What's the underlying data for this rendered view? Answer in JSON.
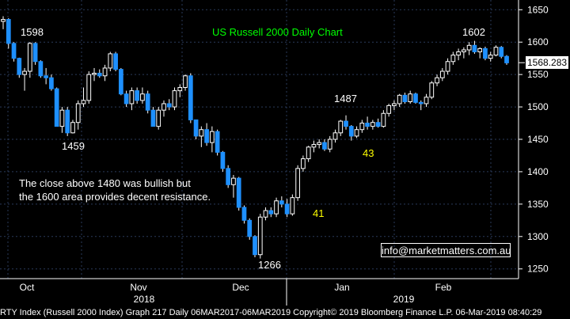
{
  "chart_data": {
    "type": "candlestick",
    "title": "US Russell 2000 Daily Chart",
    "y_ticks": [
      1250,
      1300,
      1350,
      1400,
      1450,
      1500,
      1550,
      1600,
      1650
    ],
    "ylim": [
      1235,
      1665
    ],
    "x_month_labels": [
      "Oct",
      "Nov",
      "Dec",
      "Jan",
      "Feb"
    ],
    "x_year_labels": [
      "2018",
      "2019"
    ],
    "current_value": "1568.283",
    "annotations": [
      {
        "text": "1598",
        "color": "white"
      },
      {
        "text": "1459",
        "color": "white"
      },
      {
        "text": "1266",
        "color": "white"
      },
      {
        "text": "1487",
        "color": "white"
      },
      {
        "text": "1602",
        "color": "white"
      },
      {
        "text": "43",
        "color": "yellow"
      },
      {
        "text": "41",
        "color": "yellow"
      }
    ],
    "note_lines": [
      "The close above 1480 was bullish but",
      "the 1600 area provides decent resistance."
    ],
    "watermark": "info@marketmatters.com.au",
    "candles": [
      {
        "o": 1632,
        "h": 1640,
        "l": 1620,
        "c": 1635
      },
      {
        "o": 1635,
        "h": 1637,
        "l": 1590,
        "c": 1598
      },
      {
        "o": 1598,
        "h": 1600,
        "l": 1570,
        "c": 1575
      },
      {
        "o": 1575,
        "h": 1576,
        "l": 1545,
        "c": 1550
      },
      {
        "o": 1550,
        "h": 1560,
        "l": 1525,
        "c": 1555
      },
      {
        "o": 1555,
        "h": 1600,
        "l": 1545,
        "c": 1598
      },
      {
        "o": 1598,
        "h": 1600,
        "l": 1565,
        "c": 1570
      },
      {
        "o": 1570,
        "h": 1572,
        "l": 1545,
        "c": 1548
      },
      {
        "o": 1548,
        "h": 1560,
        "l": 1535,
        "c": 1545
      },
      {
        "o": 1545,
        "h": 1550,
        "l": 1525,
        "c": 1528
      },
      {
        "o": 1528,
        "h": 1530,
        "l": 1470,
        "c": 1470
      },
      {
        "o": 1470,
        "h": 1500,
        "l": 1460,
        "c": 1495
      },
      {
        "o": 1495,
        "h": 1500,
        "l": 1455,
        "c": 1460
      },
      {
        "o": 1460,
        "h": 1480,
        "l": 1459,
        "c": 1476
      },
      {
        "o": 1476,
        "h": 1510,
        "l": 1465,
        "c": 1505
      },
      {
        "o": 1505,
        "h": 1530,
        "l": 1500,
        "c": 1510
      },
      {
        "o": 1510,
        "h": 1555,
        "l": 1505,
        "c": 1550
      },
      {
        "o": 1550,
        "h": 1560,
        "l": 1540,
        "c": 1552
      },
      {
        "o": 1552,
        "h": 1558,
        "l": 1545,
        "c": 1548
      },
      {
        "o": 1548,
        "h": 1565,
        "l": 1540,
        "c": 1560
      },
      {
        "o": 1560,
        "h": 1585,
        "l": 1555,
        "c": 1582
      },
      {
        "o": 1582,
        "h": 1585,
        "l": 1555,
        "c": 1558
      },
      {
        "o": 1558,
        "h": 1560,
        "l": 1518,
        "c": 1520
      },
      {
        "o": 1520,
        "h": 1525,
        "l": 1500,
        "c": 1505
      },
      {
        "o": 1505,
        "h": 1530,
        "l": 1495,
        "c": 1525
      },
      {
        "o": 1525,
        "h": 1530,
        "l": 1505,
        "c": 1510
      },
      {
        "o": 1510,
        "h": 1530,
        "l": 1505,
        "c": 1520
      },
      {
        "o": 1520,
        "h": 1525,
        "l": 1490,
        "c": 1495
      },
      {
        "o": 1495,
        "h": 1500,
        "l": 1470,
        "c": 1470
      },
      {
        "o": 1470,
        "h": 1500,
        "l": 1465,
        "c": 1495
      },
      {
        "o": 1495,
        "h": 1510,
        "l": 1485,
        "c": 1505
      },
      {
        "o": 1505,
        "h": 1512,
        "l": 1495,
        "c": 1500
      },
      {
        "o": 1500,
        "h": 1530,
        "l": 1495,
        "c": 1525
      },
      {
        "o": 1525,
        "h": 1535,
        "l": 1515,
        "c": 1530
      },
      {
        "o": 1530,
        "h": 1550,
        "l": 1525,
        "c": 1548
      },
      {
        "o": 1548,
        "h": 1552,
        "l": 1475,
        "c": 1480
      },
      {
        "o": 1480,
        "h": 1480,
        "l": 1450,
        "c": 1455
      },
      {
        "o": 1455,
        "h": 1470,
        "l": 1438,
        "c": 1465
      },
      {
        "o": 1465,
        "h": 1475,
        "l": 1440,
        "c": 1445
      },
      {
        "o": 1445,
        "h": 1470,
        "l": 1430,
        "c": 1462
      },
      {
        "o": 1462,
        "h": 1465,
        "l": 1425,
        "c": 1430
      },
      {
        "o": 1430,
        "h": 1432,
        "l": 1400,
        "c": 1405
      },
      {
        "o": 1405,
        "h": 1410,
        "l": 1375,
        "c": 1380
      },
      {
        "o": 1380,
        "h": 1395,
        "l": 1360,
        "c": 1390
      },
      {
        "o": 1390,
        "h": 1392,
        "l": 1340,
        "c": 1345
      },
      {
        "o": 1345,
        "h": 1348,
        "l": 1320,
        "c": 1325
      },
      {
        "o": 1325,
        "h": 1328,
        "l": 1295,
        "c": 1300
      },
      {
        "o": 1300,
        "h": 1302,
        "l": 1268,
        "c": 1272
      },
      {
        "o": 1272,
        "h": 1335,
        "l": 1266,
        "c": 1330
      },
      {
        "o": 1330,
        "h": 1345,
        "l": 1325,
        "c": 1340
      },
      {
        "o": 1340,
        "h": 1345,
        "l": 1330,
        "c": 1335
      },
      {
        "o": 1335,
        "h": 1360,
        "l": 1330,
        "c": 1355
      },
      {
        "o": 1355,
        "h": 1362,
        "l": 1345,
        "c": 1350
      },
      {
        "o": 1350,
        "h": 1358,
        "l": 1330,
        "c": 1335
      },
      {
        "o": 1335,
        "h": 1365,
        "l": 1332,
        "c": 1360
      },
      {
        "o": 1360,
        "h": 1410,
        "l": 1355,
        "c": 1405
      },
      {
        "o": 1405,
        "h": 1425,
        "l": 1400,
        "c": 1420
      },
      {
        "o": 1420,
        "h": 1440,
        "l": 1415,
        "c": 1438
      },
      {
        "o": 1438,
        "h": 1448,
        "l": 1430,
        "c": 1442
      },
      {
        "o": 1442,
        "h": 1450,
        "l": 1436,
        "c": 1445
      },
      {
        "o": 1445,
        "h": 1450,
        "l": 1432,
        "c": 1435
      },
      {
        "o": 1435,
        "h": 1455,
        "l": 1430,
        "c": 1450
      },
      {
        "o": 1450,
        "h": 1465,
        "l": 1445,
        "c": 1460
      },
      {
        "o": 1460,
        "h": 1480,
        "l": 1455,
        "c": 1478
      },
      {
        "o": 1478,
        "h": 1487,
        "l": 1465,
        "c": 1470
      },
      {
        "o": 1470,
        "h": 1472,
        "l": 1448,
        "c": 1455
      },
      {
        "o": 1455,
        "h": 1470,
        "l": 1452,
        "c": 1465
      },
      {
        "o": 1465,
        "h": 1480,
        "l": 1460,
        "c": 1475
      },
      {
        "o": 1475,
        "h": 1485,
        "l": 1465,
        "c": 1470
      },
      {
        "o": 1470,
        "h": 1480,
        "l": 1465,
        "c": 1476
      },
      {
        "o": 1476,
        "h": 1482,
        "l": 1468,
        "c": 1470
      },
      {
        "o": 1470,
        "h": 1495,
        "l": 1468,
        "c": 1490
      },
      {
        "o": 1490,
        "h": 1505,
        "l": 1485,
        "c": 1502
      },
      {
        "o": 1502,
        "h": 1510,
        "l": 1495,
        "c": 1505
      },
      {
        "o": 1505,
        "h": 1520,
        "l": 1500,
        "c": 1518
      },
      {
        "o": 1518,
        "h": 1522,
        "l": 1505,
        "c": 1508
      },
      {
        "o": 1508,
        "h": 1525,
        "l": 1505,
        "c": 1520
      },
      {
        "o": 1520,
        "h": 1522,
        "l": 1505,
        "c": 1507
      },
      {
        "o": 1507,
        "h": 1510,
        "l": 1495,
        "c": 1505
      },
      {
        "o": 1505,
        "h": 1520,
        "l": 1500,
        "c": 1515
      },
      {
        "o": 1515,
        "h": 1540,
        "l": 1512,
        "c": 1537
      },
      {
        "o": 1537,
        "h": 1550,
        "l": 1532,
        "c": 1545
      },
      {
        "o": 1545,
        "h": 1560,
        "l": 1540,
        "c": 1555
      },
      {
        "o": 1555,
        "h": 1575,
        "l": 1550,
        "c": 1570
      },
      {
        "o": 1570,
        "h": 1585,
        "l": 1565,
        "c": 1580
      },
      {
        "o": 1580,
        "h": 1590,
        "l": 1572,
        "c": 1585
      },
      {
        "o": 1585,
        "h": 1592,
        "l": 1575,
        "c": 1588
      },
      {
        "o": 1588,
        "h": 1600,
        "l": 1580,
        "c": 1595
      },
      {
        "o": 1595,
        "h": 1602,
        "l": 1582,
        "c": 1585
      },
      {
        "o": 1585,
        "h": 1592,
        "l": 1575,
        "c": 1590
      },
      {
        "o": 1590,
        "h": 1593,
        "l": 1572,
        "c": 1575
      },
      {
        "o": 1575,
        "h": 1585,
        "l": 1570,
        "c": 1580
      },
      {
        "o": 1580,
        "h": 1595,
        "l": 1578,
        "c": 1592
      },
      {
        "o": 1592,
        "h": 1594,
        "l": 1575,
        "c": 1578
      },
      {
        "o": 1578,
        "h": 1580,
        "l": 1565,
        "c": 1568
      }
    ]
  },
  "footer": {
    "text": "RTY Index (Russell 2000 Index) Graph 217  Daily 06MAR2017-06MAR2019 Copyright© 2019 Bloomberg Finance L.P.  06-Mar-2019 08:40:29"
  },
  "colors": {
    "up": "#ffffff",
    "down": "#1e90ff",
    "grid": "#2a3a5a",
    "background": "#000000"
  }
}
